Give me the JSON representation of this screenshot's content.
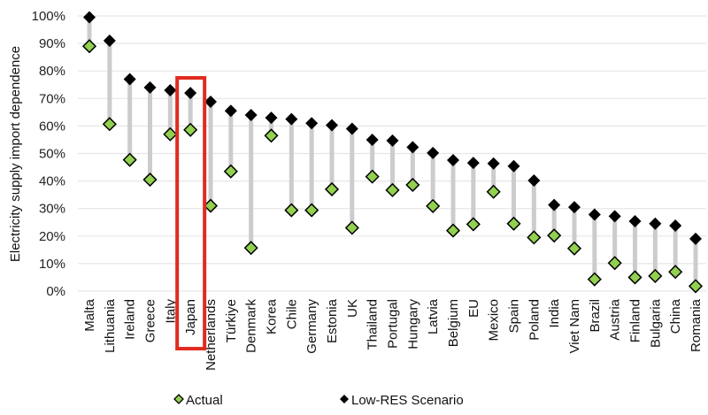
{
  "chart_data": {
    "type": "scatter",
    "subtype": "dumbbell",
    "title": "",
    "xlabel": "",
    "ylabel": "Electricity supply import dependence",
    "ylim": [
      0,
      100
    ],
    "yticks": [
      "0%",
      "10%",
      "20%",
      "30%",
      "40%",
      "50%",
      "60%",
      "70%",
      "80%",
      "90%",
      "100%"
    ],
    "ytick_values": [
      0,
      10,
      20,
      30,
      40,
      50,
      60,
      70,
      80,
      90,
      100
    ],
    "grid": true,
    "legend_position": "bottom",
    "highlighted_category": "Japan",
    "categories": [
      "Malta",
      "Lithuania",
      "Ireland",
      "Greece",
      "Italy",
      "Japan",
      "Netherlands",
      "Türkiye",
      "Denmark",
      "Korea",
      "Chile",
      "Germany",
      "Estonia",
      "UK",
      "Thailand",
      "Portugal",
      "Hungary",
      "Latvia",
      "Belgium",
      "EU",
      "Mexico",
      "Spain",
      "Poland",
      "India",
      "Viet Nam",
      "Brazil",
      "Austria",
      "Finland",
      "Bulgaria",
      "China",
      "Romania"
    ],
    "series": [
      {
        "name": "Actual",
        "marker": "diamond",
        "color": "#92d050",
        "edge_color": "#000000",
        "values": [
          89,
          60.7,
          47.7,
          40.5,
          57,
          58.6,
          31,
          43.5,
          15.7,
          56.5,
          29.4,
          29.4,
          37,
          23,
          41.6,
          36.7,
          38.6,
          30.9,
          22,
          24.3,
          36.1,
          24.5,
          19.5,
          20.2,
          15.5,
          4.3,
          10.2,
          5,
          5.5,
          7,
          1.8
        ]
      },
      {
        "name": "Low-RES Scenario",
        "marker": "diamond",
        "color": "#000000",
        "edge_color": "#000000",
        "values": [
          99.5,
          91,
          77,
          74,
          73,
          72,
          68.8,
          65.5,
          64,
          63,
          62.5,
          61,
          60.3,
          59,
          55,
          54.7,
          52.3,
          50.2,
          47.6,
          46.6,
          46.4,
          45.4,
          40.2,
          31.3,
          30.5,
          27.8,
          27.2,
          25.4,
          24.5,
          23.8,
          19
        ]
      }
    ],
    "connector_color": "#cccccc",
    "highlight_color": "#e02b20"
  }
}
